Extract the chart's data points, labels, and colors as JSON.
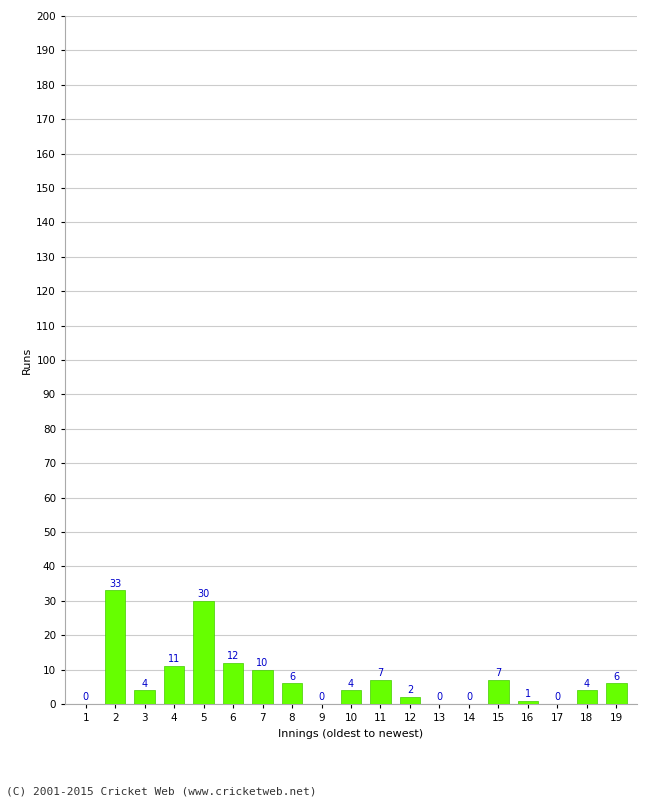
{
  "innings": [
    1,
    2,
    3,
    4,
    5,
    6,
    7,
    8,
    9,
    10,
    11,
    12,
    13,
    14,
    15,
    16,
    17,
    18,
    19
  ],
  "runs": [
    0,
    33,
    4,
    11,
    30,
    12,
    10,
    6,
    0,
    4,
    7,
    2,
    0,
    0,
    7,
    1,
    0,
    4,
    6
  ],
  "bar_color": "#66ff00",
  "bar_edge_color": "#44cc00",
  "label_color": "#0000cc",
  "xlabel": "Innings (oldest to newest)",
  "ylabel": "Runs",
  "ylim": [
    0,
    200
  ],
  "ytick_step": 10,
  "background_color": "#ffffff",
  "grid_color": "#cccccc",
  "footer_text": "(C) 2001-2015 Cricket Web (www.cricketweb.net)",
  "footer_fontsize": 8,
  "label_fontsize": 7,
  "axis_label_fontsize": 8,
  "tick_fontsize": 7.5
}
